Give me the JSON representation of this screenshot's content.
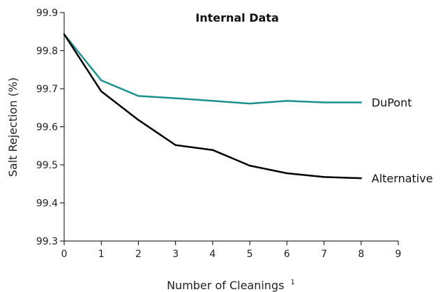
{
  "chart_data": {
    "type": "line",
    "title": "Internal Data",
    "xlabel": "Number of Cleanings",
    "xlabel_sup": "1",
    "ylabel": "Salt Rejection (%)",
    "xlim": [
      0,
      9
    ],
    "ylim": [
      99.3,
      99.9
    ],
    "xticks": [
      "0",
      "1",
      "2",
      "3",
      "4",
      "5",
      "6",
      "7",
      "8",
      "9"
    ],
    "yticks": [
      "99.3",
      "99.4",
      "99.5",
      "99.6",
      "99.7",
      "99.8",
      "99.9"
    ],
    "grid": false,
    "series": [
      {
        "name": "DuPont",
        "color": "#1a918c",
        "x": [
          0,
          1,
          2,
          3,
          4,
          5,
          6,
          7,
          8
        ],
        "values": [
          99.843,
          99.722,
          99.681,
          99.675,
          99.668,
          99.661,
          99.668,
          99.664,
          99.664
        ]
      },
      {
        "name": "Alternative",
        "color": "#000000",
        "x": [
          0,
          1,
          2,
          3,
          4,
          5,
          6,
          7,
          8
        ],
        "values": [
          99.843,
          99.693,
          99.618,
          99.552,
          99.539,
          99.498,
          99.478,
          99.468,
          99.465
        ]
      }
    ]
  }
}
